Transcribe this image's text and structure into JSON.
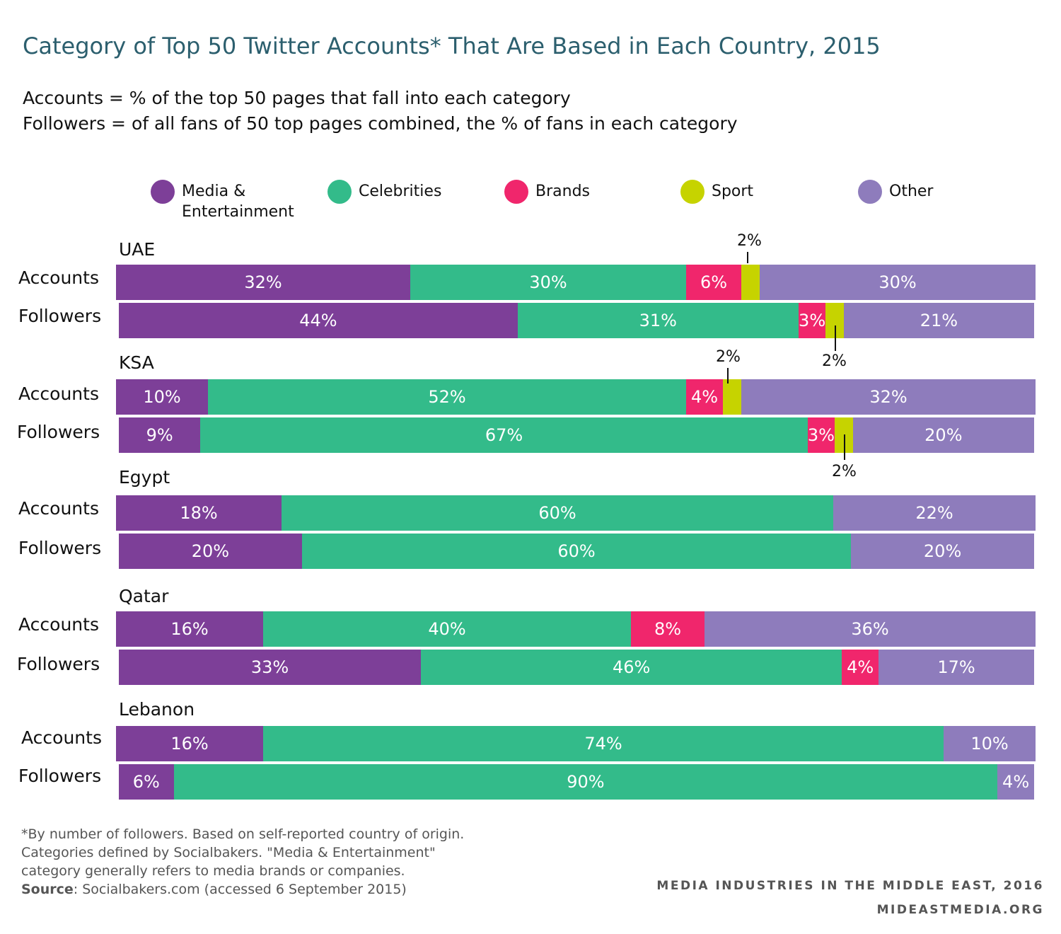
{
  "title": "Category of Top 50 Twitter Accounts* That Are Based in Each Country, 2015",
  "subtitle_lines": [
    "Accounts = % of the top 50 pages that fall into each category",
    "Followers = of all fans of 50 top pages combined, the % of fans in each category"
  ],
  "colors": {
    "media": "#7d3f98",
    "celebrities": "#33bb8a",
    "brands": "#f0266c",
    "sport": "#c6d300",
    "other": "#8e7cbc"
  },
  "legend": [
    {
      "key": "media",
      "label": "Media & Entertainment"
    },
    {
      "key": "celebrities",
      "label": "Celebrities"
    },
    {
      "key": "brands",
      "label": "Brands"
    },
    {
      "key": "sport",
      "label": "Sport"
    },
    {
      "key": "other",
      "label": "Other"
    }
  ],
  "chart_data": {
    "type": "bar",
    "orientation": "horizontal",
    "stacked": true,
    "normalized_to_100": true,
    "series_order": [
      "media",
      "celebrities",
      "brands",
      "sport",
      "other"
    ],
    "groups": [
      {
        "country": "UAE",
        "rows": [
          {
            "label": "Accounts",
            "values": {
              "media": 32,
              "celebrities": 30,
              "brands": 6,
              "sport": 2,
              "other": 30
            }
          },
          {
            "label": "Followers",
            "values": {
              "media": 44,
              "celebrities": 31,
              "brands": 3,
              "sport": 2,
              "other": 21
            }
          }
        ]
      },
      {
        "country": "KSA",
        "rows": [
          {
            "label": "Accounts",
            "values": {
              "media": 10,
              "celebrities": 52,
              "brands": 4,
              "sport": 2,
              "other": 32
            }
          },
          {
            "label": "Followers",
            "values": {
              "media": 9,
              "celebrities": 67,
              "brands": 3,
              "sport": 2,
              "other": 20
            }
          }
        ]
      },
      {
        "country": "Egypt",
        "rows": [
          {
            "label": "Accounts",
            "values": {
              "media": 18,
              "celebrities": 60,
              "brands": 0,
              "sport": 0,
              "other": 22
            }
          },
          {
            "label": "Followers",
            "values": {
              "media": 20,
              "celebrities": 60,
              "brands": 0,
              "sport": 0,
              "other": 20
            }
          }
        ]
      },
      {
        "country": "Qatar",
        "rows": [
          {
            "label": "Accounts",
            "values": {
              "media": 16,
              "celebrities": 40,
              "brands": 8,
              "sport": 0,
              "other": 36
            }
          },
          {
            "label": "Followers",
            "values": {
              "media": 33,
              "celebrities": 46,
              "brands": 4,
              "sport": 0,
              "other": 17
            }
          }
        ]
      },
      {
        "country": "Lebanon",
        "rows": [
          {
            "label": "Accounts",
            "values": {
              "media": 16,
              "celebrities": 74,
              "brands": 0,
              "sport": 0,
              "other": 10
            }
          },
          {
            "label": "Followers",
            "values": {
              "media": 6,
              "celebrities": 90,
              "brands": 0,
              "sport": 0,
              "other": 4
            }
          }
        ]
      }
    ]
  },
  "footnote": {
    "lines": [
      "*By number of followers. Based on self-reported country of origin.",
      "Categories defined by Socialbakers. \"Media & Entertainment\"",
      "category generally refers to media brands or companies."
    ],
    "source_label": "Source",
    "source_text": ": Socialbakers.com (accessed 6 September 2015)"
  },
  "credit": {
    "line1": "MEDIA INDUSTRIES IN THE MIDDLE EAST, 2016",
    "line2": "MIDEASTMEDIA.ORG"
  }
}
